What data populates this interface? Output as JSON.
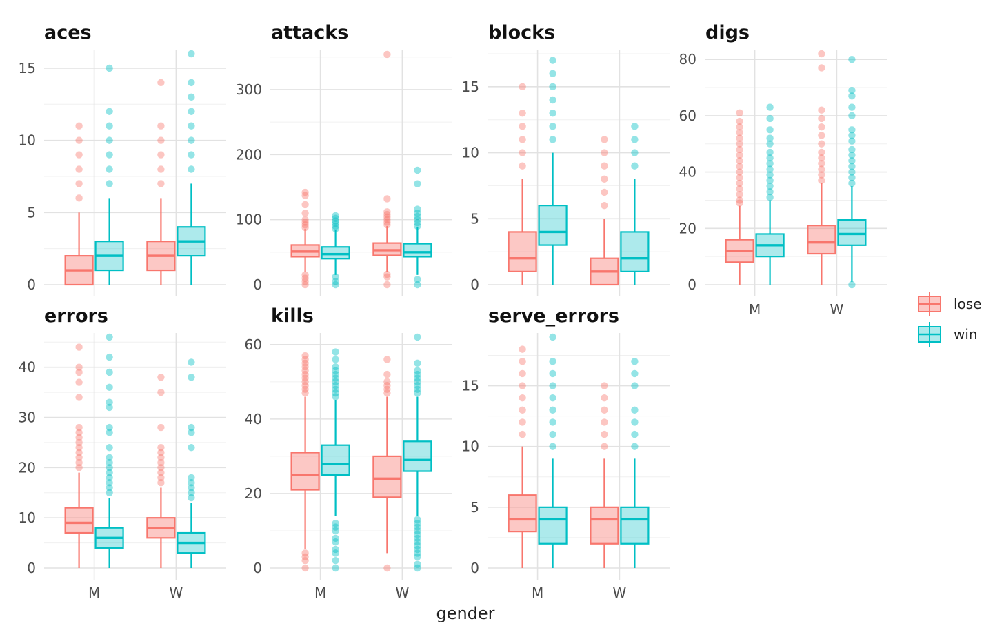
{
  "chart_data": {
    "type": "boxplot",
    "xlabel": "gender",
    "ylabel": "",
    "categories": [
      "M",
      "W"
    ],
    "series": [
      {
        "name": "lose",
        "color": "#F8766D"
      },
      {
        "name": "win",
        "color": "#00BFC4"
      }
    ],
    "legend": {
      "position": "right"
    },
    "grid": true,
    "panels": [
      {
        "title": "aces",
        "ylim": [
          0,
          16
        ],
        "yticks": [
          0,
          5,
          10,
          15
        ],
        "boxes": {
          "M": {
            "lose": {
              "min": 0,
              "q1": 0,
              "median": 1,
              "q3": 2,
              "max": 5,
              "outliers": [
                6,
                7,
                8,
                9,
                10,
                11
              ]
            },
            "win": {
              "min": 0,
              "q1": 1,
              "median": 2,
              "q3": 3,
              "max": 6,
              "outliers": [
                7,
                8,
                9,
                10,
                11,
                12,
                15
              ]
            }
          },
          "W": {
            "lose": {
              "min": 0,
              "q1": 1,
              "median": 2,
              "q3": 3,
              "max": 6,
              "outliers": [
                7,
                8,
                9,
                10,
                11,
                14
              ]
            },
            "win": {
              "min": 0,
              "q1": 2,
              "median": 3,
              "q3": 4,
              "max": 7,
              "outliers": [
                8,
                9,
                10,
                11,
                12,
                13,
                14,
                16
              ]
            }
          }
        }
      },
      {
        "title": "attacks",
        "ylim": [
          0,
          355
        ],
        "yticks": [
          0,
          100,
          200,
          300
        ],
        "boxes": {
          "M": {
            "lose": {
              "min": 20,
              "q1": 43,
              "median": 51,
              "q3": 61,
              "max": 86,
              "outliers": [
                0,
                5,
                10,
                15,
                88,
                92,
                96,
                100,
                110,
                123,
                137,
                142
              ]
            },
            "win": {
              "min": 15,
              "q1": 40,
              "median": 47,
              "q3": 58,
              "max": 84,
              "outliers": [
                0,
                5,
                12,
                86,
                90,
                94,
                98,
                102,
                106
              ]
            }
          },
          "W": {
            "lose": {
              "min": 20,
              "q1": 45,
              "median": 53,
              "q3": 64,
              "max": 90,
              "outliers": [
                0,
                12,
                16,
                92,
                96,
                100,
                104,
                108,
                112,
                132,
                354
              ]
            },
            "win": {
              "min": 15,
              "q1": 43,
              "median": 50,
              "q3": 63,
              "max": 88,
              "outliers": [
                0,
                8,
                90,
                95,
                100,
                105,
                110,
                116,
                155,
                176
              ]
            }
          }
        }
      },
      {
        "title": "blocks",
        "ylim": [
          0,
          17.5
        ],
        "yticks": [
          0,
          5,
          10,
          15
        ],
        "boxes": {
          "M": {
            "lose": {
              "min": 0,
              "q1": 1,
              "median": 2,
              "q3": 4,
              "max": 8,
              "outliers": [
                9,
                10,
                11,
                12,
                13,
                15
              ]
            },
            "win": {
              "min": 0,
              "q1": 3,
              "median": 4,
              "q3": 6,
              "max": 10,
              "outliers": [
                11,
                12,
                13,
                14,
                15,
                16,
                17
              ]
            }
          },
          "W": {
            "lose": {
              "min": 0,
              "q1": 0,
              "median": 1,
              "q3": 2,
              "max": 5,
              "outliers": [
                6,
                7,
                8,
                9,
                10,
                11
              ]
            },
            "win": {
              "min": 0,
              "q1": 1,
              "median": 2,
              "q3": 4,
              "max": 8,
              "outliers": [
                9,
                10,
                11,
                12
              ]
            }
          }
        }
      },
      {
        "title": "digs",
        "ylim": [
          0,
          82
        ],
        "yticks": [
          0,
          20,
          40,
          60,
          80
        ],
        "boxes": {
          "M": {
            "lose": {
              "min": 0,
              "q1": 8,
              "median": 12,
              "q3": 16,
              "max": 28,
              "outliers": [
                29,
                30,
                32,
                34,
                36,
                38,
                40,
                42,
                44,
                46,
                48,
                50,
                52,
                54,
                56,
                58,
                61
              ]
            },
            "win": {
              "min": 0,
              "q1": 10,
              "median": 14,
              "q3": 18,
              "max": 30,
              "outliers": [
                31,
                33,
                35,
                37,
                39,
                41,
                43,
                45,
                47,
                50,
                52,
                55,
                59,
                63
              ]
            }
          },
          "W": {
            "lose": {
              "min": 0,
              "q1": 11,
              "median": 15,
              "q3": 21,
              "max": 36,
              "outliers": [
                37,
                39,
                41,
                43,
                45,
                47,
                50,
                53,
                56,
                59,
                62,
                77,
                82
              ]
            },
            "win": {
              "min": 1,
              "q1": 14,
              "median": 18,
              "q3": 23,
              "max": 35,
              "outliers": [
                0,
                36,
                38,
                40,
                42,
                44,
                46,
                48,
                51,
                53,
                55,
                60,
                63,
                67,
                69,
                80
              ]
            }
          }
        }
      },
      {
        "title": "errors",
        "ylim": [
          0,
          46
        ],
        "yticks": [
          0,
          10,
          20,
          30,
          40
        ],
        "boxes": {
          "M": {
            "lose": {
              "min": 0,
              "q1": 7,
              "median": 9,
              "q3": 12,
              "max": 19,
              "outliers": [
                20,
                21,
                22,
                23,
                24,
                25,
                26,
                27,
                28,
                34,
                37,
                39,
                40,
                44
              ]
            },
            "win": {
              "min": 0,
              "q1": 4,
              "median": 6,
              "q3": 8,
              "max": 14,
              "outliers": [
                15,
                16,
                17,
                18,
                19,
                20,
                21,
                22,
                24,
                27,
                28,
                32,
                33,
                36,
                39,
                42,
                46
              ]
            }
          },
          "W": {
            "lose": {
              "min": 0,
              "q1": 6,
              "median": 8,
              "q3": 10,
              "max": 16,
              "outliers": [
                17,
                18,
                19,
                20,
                21,
                22,
                23,
                24,
                28,
                35,
                38
              ]
            },
            "win": {
              "min": 0,
              "q1": 3,
              "median": 5,
              "q3": 7,
              "max": 13,
              "outliers": [
                14,
                15,
                16,
                17,
                18,
                24,
                27,
                28,
                38,
                41
              ]
            }
          }
        }
      },
      {
        "title": "kills",
        "ylim": [
          0,
          62
        ],
        "yticks": [
          0,
          20,
          40,
          60
        ],
        "boxes": {
          "M": {
            "lose": {
              "min": 5,
              "q1": 21,
              "median": 25,
              "q3": 31,
              "max": 46,
              "outliers": [
                0,
                2,
                3,
                4,
                47,
                48,
                49,
                50,
                51,
                52,
                53,
                54,
                55,
                56,
                57
              ]
            },
            "win": {
              "min": 14,
              "q1": 25,
              "median": 28,
              "q3": 33,
              "max": 45,
              "outliers": [
                0,
                2,
                4,
                5,
                7,
                8,
                10,
                11,
                12,
                46,
                47,
                48,
                49,
                50,
                51,
                52,
                53,
                54,
                56,
                58
              ]
            }
          },
          "W": {
            "lose": {
              "min": 4,
              "q1": 19,
              "median": 24,
              "q3": 30,
              "max": 46,
              "outliers": [
                0,
                47,
                48,
                49,
                50,
                52,
                56
              ]
            },
            "win": {
              "min": 14,
              "q1": 26,
              "median": 29,
              "q3": 34,
              "max": 46,
              "outliers": [
                0,
                1,
                3,
                4,
                5,
                6,
                7,
                8,
                9,
                10,
                11,
                12,
                13,
                47,
                48,
                49,
                50,
                51,
                52,
                53,
                55,
                62
              ]
            }
          }
        }
      },
      {
        "title": "serve_errors",
        "ylim": [
          0,
          19
        ],
        "yticks": [
          0,
          5,
          10,
          15
        ],
        "boxes": {
          "M": {
            "lose": {
              "min": 0,
              "q1": 3,
              "median": 4,
              "q3": 6,
              "max": 10,
              "outliers": [
                11,
                12,
                13,
                14,
                15,
                16,
                17,
                18
              ]
            },
            "win": {
              "min": 0,
              "q1": 2,
              "median": 4,
              "q3": 5,
              "max": 9,
              "outliers": [
                10,
                11,
                12,
                13,
                14,
                15,
                16,
                17,
                19
              ]
            }
          },
          "W": {
            "lose": {
              "min": 0,
              "q1": 2,
              "median": 4,
              "q3": 5,
              "max": 9,
              "outliers": [
                10,
                11,
                12,
                13,
                14,
                15
              ]
            },
            "win": {
              "min": 0,
              "q1": 2,
              "median": 4,
              "q3": 5,
              "max": 9,
              "outliers": [
                10,
                11,
                12,
                13,
                15,
                16,
                17
              ]
            }
          }
        }
      }
    ]
  }
}
